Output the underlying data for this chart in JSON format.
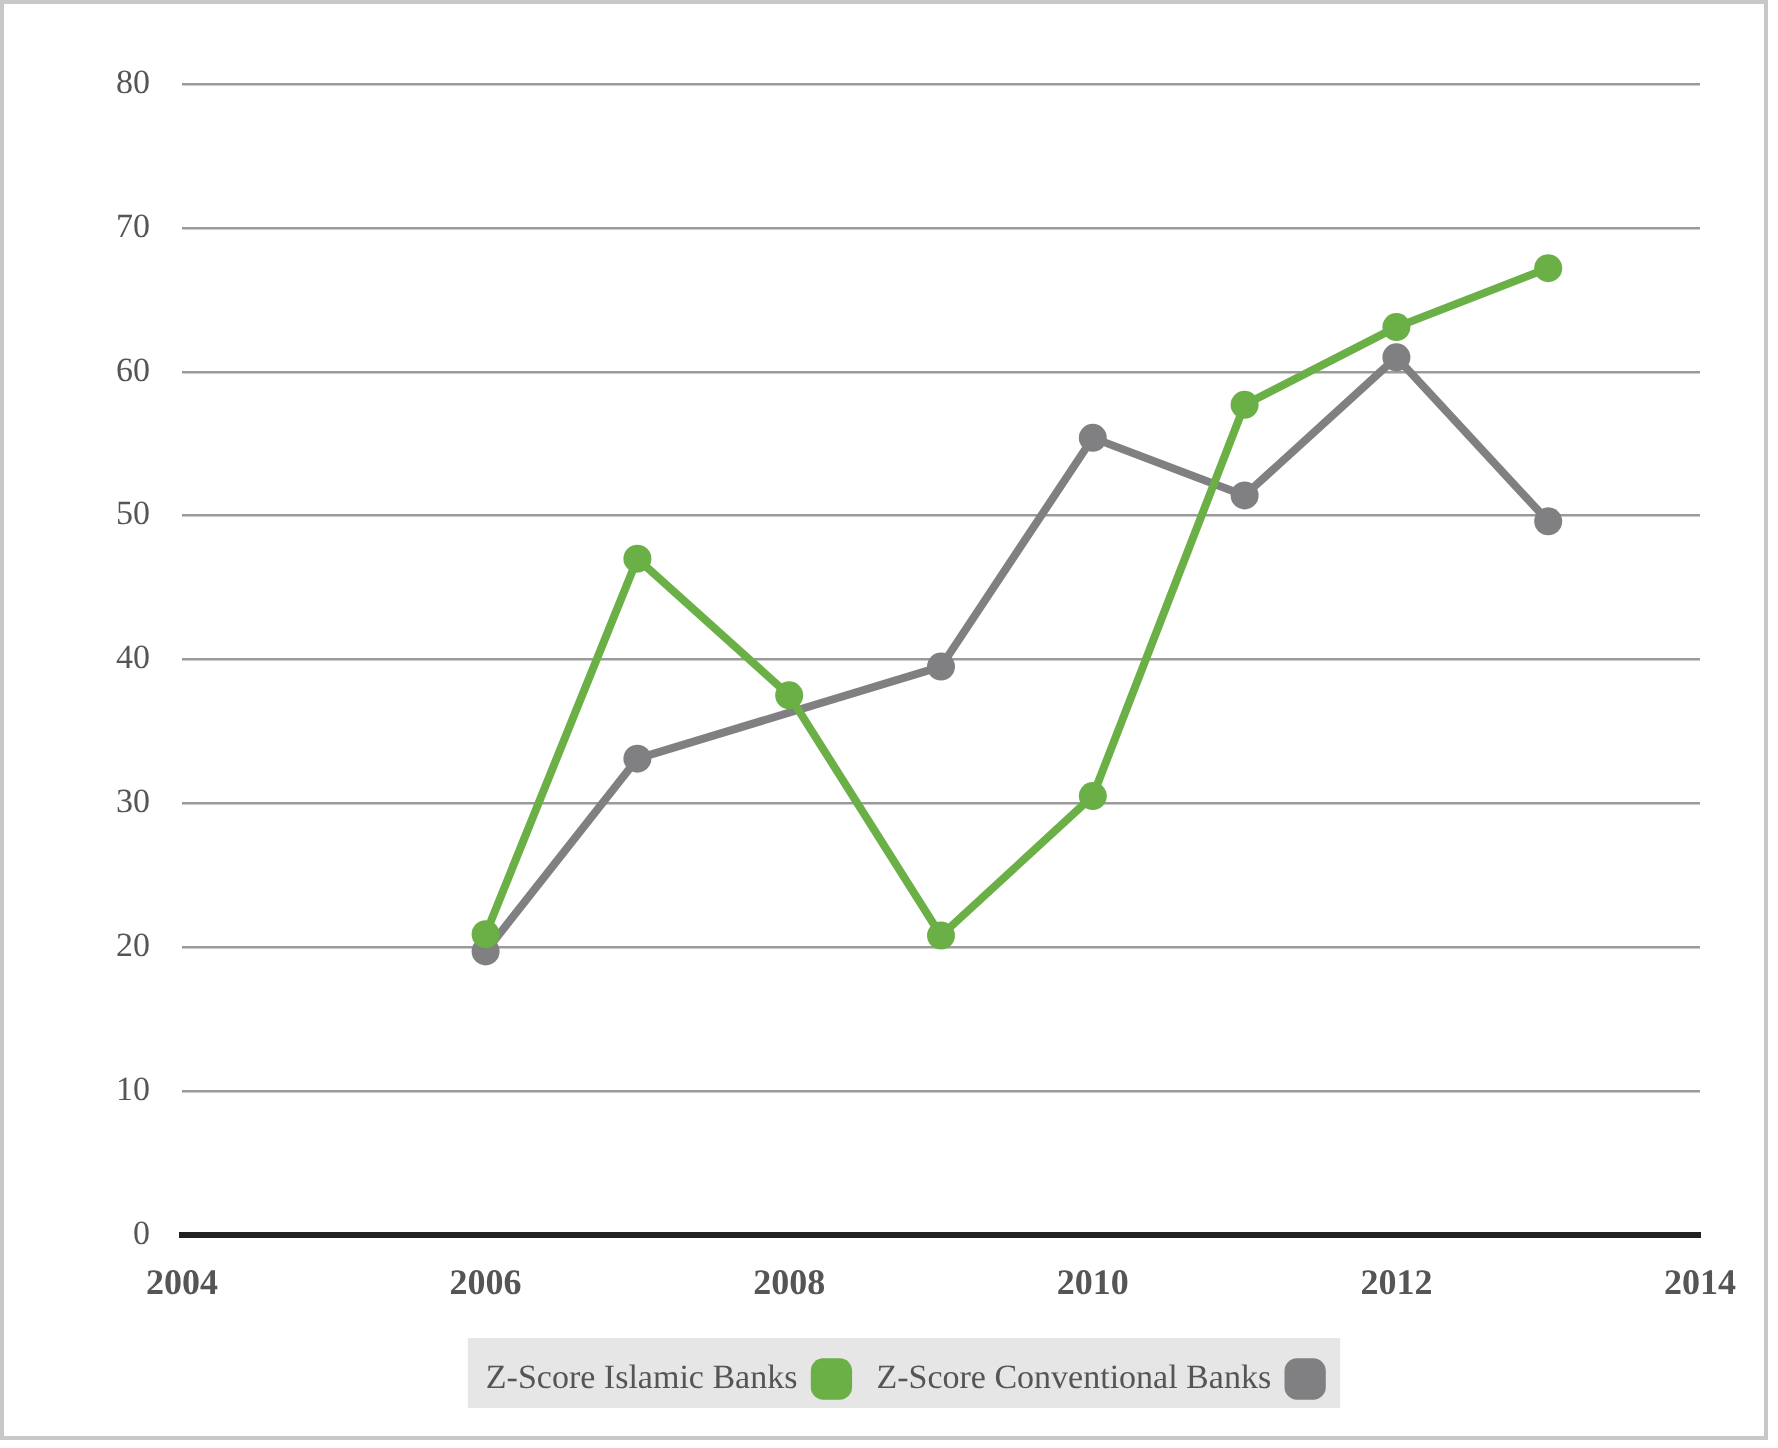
{
  "chart_data": {
    "type": "line",
    "x": [
      2006,
      2007,
      2008,
      2009,
      2010,
      2011,
      2012,
      2013
    ],
    "series": [
      {
        "name": "Z-Score Islamic Banks",
        "color": "#6ab046",
        "values": [
          20.9,
          47,
          37.5,
          20.8,
          30.5,
          57.7,
          63.1,
          67.2
        ]
      },
      {
        "name": "Z-Score Conventional Banks",
        "color": "#808083",
        "values": [
          19.7,
          33.1,
          null,
          39.5,
          55.4,
          51.4,
          61,
          49.6
        ]
      }
    ],
    "xlim": [
      2004,
      2014
    ],
    "xticks": [
      2004,
      2006,
      2008,
      2010,
      2012,
      2014
    ],
    "ylim": [
      0,
      80
    ],
    "yticks": [
      0,
      10,
      20,
      30,
      40,
      50,
      60,
      70,
      80
    ],
    "grid": "y",
    "legend": "bottom",
    "marker": "circle",
    "line_style": "solid"
  }
}
